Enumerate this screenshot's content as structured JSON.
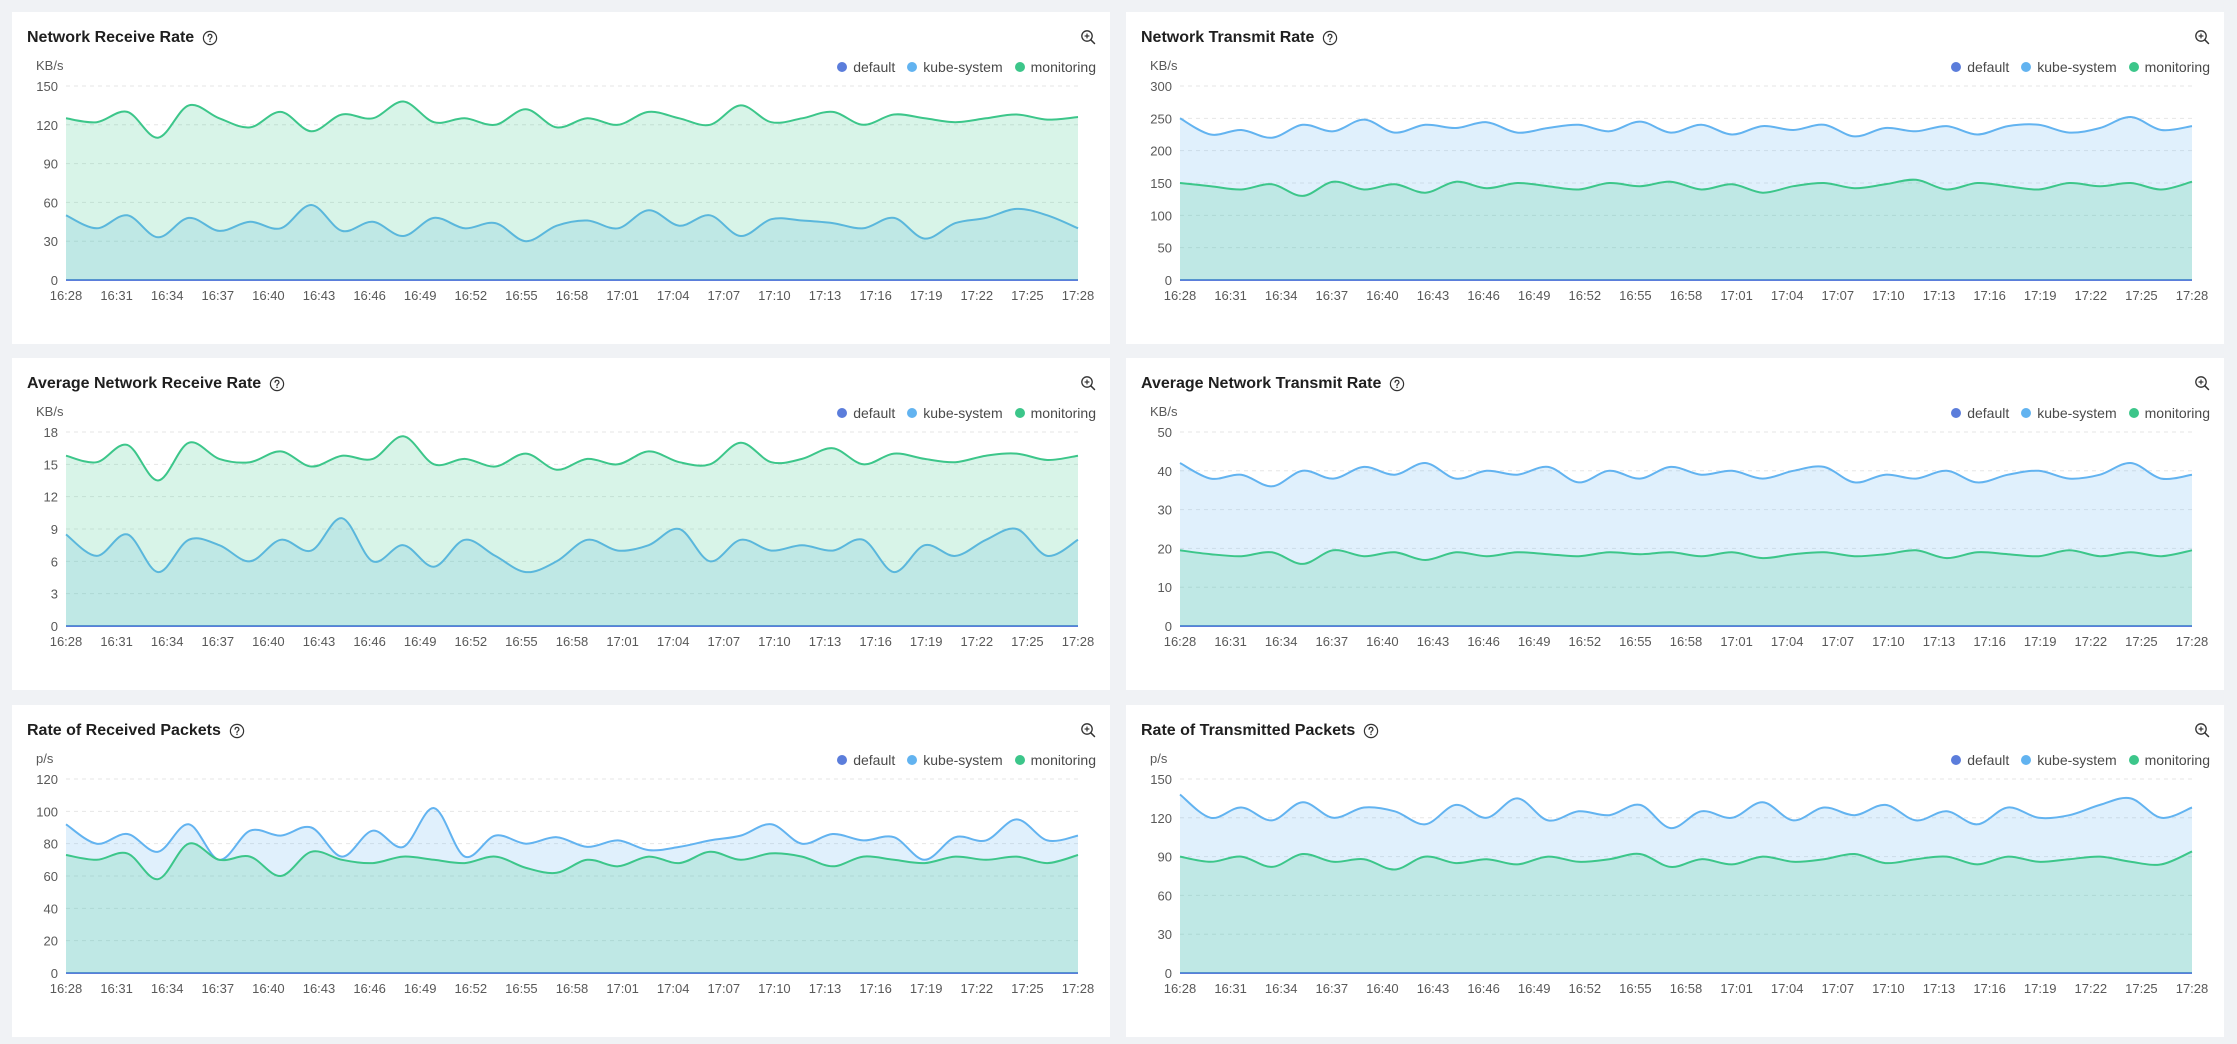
{
  "legend": [
    {
      "name": "default",
      "color": "#5b7ddb"
    },
    {
      "name": "kube-system",
      "color": "#62b3f0"
    },
    {
      "name": "monitoring",
      "color": "#3cc68a"
    }
  ],
  "icons": {
    "help": "question-circle-icon",
    "zoom": "zoom-in-icon"
  },
  "x_labels": [
    "16:28",
    "16:31",
    "16:34",
    "16:37",
    "16:40",
    "16:43",
    "16:46",
    "16:49",
    "16:52",
    "16:55",
    "16:58",
    "17:01",
    "17:04",
    "17:07",
    "17:10",
    "17:13",
    "17:16",
    "17:19",
    "17:22",
    "17:25",
    "17:28"
  ],
  "panels": [
    {
      "title": "Network Receive Rate",
      "chart_data": {
        "type": "area",
        "unit": "KB/s",
        "ylim": [
          0,
          150
        ],
        "yticks": [
          0,
          30,
          60,
          90,
          120,
          150
        ],
        "series": [
          {
            "name": "default",
            "values": [
              0,
              0,
              0,
              0,
              0,
              0,
              0,
              0,
              0,
              0,
              0,
              0,
              0,
              0,
              0,
              0,
              0,
              0,
              0,
              0,
              0
            ]
          },
          {
            "name": "kube-system",
            "values": [
              50,
              40,
              50,
              33,
              48,
              38,
              45,
              40,
              58,
              38,
              45,
              34,
              48,
              40,
              44,
              30,
              42,
              46,
              40,
              54,
              42,
              50,
              34,
              47,
              46,
              44,
              40,
              48,
              32,
              44,
              48,
              55,
              50,
              40
            ]
          },
          {
            "name": "monitoring",
            "values": [
              125,
              122,
              130,
              110,
              135,
              125,
              118,
              130,
              115,
              128,
              125,
              138,
              122,
              125,
              120,
              132,
              118,
              125,
              120,
              130,
              125,
              120,
              135,
              122,
              125,
              130,
              120,
              128,
              125,
              122,
              125,
              128,
              124,
              126
            ]
          }
        ]
      }
    },
    {
      "title": "Network Transmit Rate",
      "chart_data": {
        "type": "area",
        "unit": "KB/s",
        "ylim": [
          0,
          300
        ],
        "yticks": [
          0,
          50,
          100,
          150,
          200,
          250,
          300
        ],
        "series": [
          {
            "name": "default",
            "values": [
              0,
              0,
              0,
              0,
              0,
              0,
              0,
              0,
              0,
              0,
              0,
              0,
              0,
              0,
              0,
              0,
              0,
              0,
              0,
              0,
              0
            ]
          },
          {
            "name": "kube-system",
            "values": [
              250,
              225,
              232,
              220,
              240,
              230,
              248,
              228,
              240,
              235,
              244,
              228,
              235,
              240,
              230,
              245,
              228,
              240,
              225,
              238,
              232,
              240,
              222,
              235,
              230,
              238,
              225,
              238,
              240,
              228,
              235,
              252,
              232,
              238
            ]
          },
          {
            "name": "monitoring",
            "values": [
              150,
              145,
              140,
              148,
              130,
              152,
              140,
              148,
              135,
              152,
              142,
              150,
              145,
              140,
              150,
              145,
              152,
              140,
              148,
              135,
              145,
              150,
              142,
              148,
              155,
              140,
              150,
              145,
              140,
              150,
              145,
              150,
              140,
              152
            ]
          }
        ]
      }
    },
    {
      "title": "Average Network Receive Rate",
      "chart_data": {
        "type": "area",
        "unit": "KB/s",
        "ylim": [
          0,
          18
        ],
        "yticks": [
          0,
          3,
          6,
          9,
          12,
          15,
          18
        ],
        "series": [
          {
            "name": "default",
            "values": [
              0,
              0,
              0,
              0,
              0,
              0,
              0,
              0,
              0,
              0,
              0,
              0,
              0,
              0,
              0,
              0,
              0,
              0,
              0,
              0,
              0
            ]
          },
          {
            "name": "kube-system",
            "values": [
              8.5,
              6.5,
              8.5,
              5,
              8,
              7.5,
              6,
              8,
              7,
              10,
              6,
              7.5,
              5.5,
              8,
              6.5,
              5,
              6,
              8,
              7,
              7.5,
              9,
              6,
              8,
              7,
              7.5,
              7,
              8,
              5,
              7.5,
              6.5,
              8,
              9,
              6.5,
              8
            ]
          },
          {
            "name": "monitoring",
            "values": [
              15.8,
              15.2,
              16.8,
              13.5,
              17,
              15.5,
              15.2,
              16.2,
              14.8,
              15.8,
              15.5,
              17.6,
              15,
              15.5,
              14.8,
              16,
              14.5,
              15.5,
              15,
              16.2,
              15.2,
              15,
              17,
              15.2,
              15.5,
              16.5,
              15,
              16,
              15.5,
              15.2,
              15.8,
              16,
              15.4,
              15.8
            ]
          }
        ]
      }
    },
    {
      "title": "Average Network Transmit Rate",
      "chart_data": {
        "type": "area",
        "unit": "KB/s",
        "ylim": [
          0,
          50
        ],
        "yticks": [
          0,
          10,
          20,
          30,
          40,
          50
        ],
        "series": [
          {
            "name": "default",
            "values": [
              0,
              0,
              0,
              0,
              0,
              0,
              0,
              0,
              0,
              0,
              0,
              0,
              0,
              0,
              0,
              0,
              0,
              0,
              0,
              0,
              0
            ]
          },
          {
            "name": "kube-system",
            "values": [
              42,
              38,
              39,
              36,
              40,
              38,
              41,
              39,
              42,
              38,
              40,
              39,
              41,
              37,
              40,
              38,
              41,
              39,
              40,
              38,
              40,
              41,
              37,
              39,
              38,
              40,
              37,
              39,
              40,
              38,
              39,
              42,
              38,
              39
            ]
          },
          {
            "name": "monitoring",
            "values": [
              19.5,
              18.5,
              18,
              19,
              16,
              19.5,
              18,
              19,
              17,
              19,
              18,
              19,
              18.5,
              18,
              19,
              18.5,
              19,
              18,
              19,
              17.5,
              18.5,
              19,
              18,
              18.5,
              19.5,
              17.5,
              19,
              18.5,
              18,
              19.5,
              18,
              19,
              18,
              19.5
            ]
          }
        ]
      }
    },
    {
      "title": "Rate of Received Packets",
      "chart_data": {
        "type": "area",
        "unit": "p/s",
        "ylim": [
          0,
          120
        ],
        "yticks": [
          0,
          20,
          40,
          60,
          80,
          100,
          120
        ],
        "series": [
          {
            "name": "default",
            "values": [
              0,
              0,
              0,
              0,
              0,
              0,
              0,
              0,
              0,
              0,
              0,
              0,
              0,
              0,
              0,
              0,
              0,
              0,
              0,
              0,
              0
            ]
          },
          {
            "name": "kube-system",
            "values": [
              92,
              80,
              86,
              75,
              92,
              70,
              88,
              85,
              90,
              72,
              88,
              78,
              102,
              72,
              85,
              80,
              84,
              78,
              82,
              76,
              78,
              82,
              85,
              92,
              80,
              86,
              82,
              84,
              70,
              84,
              82,
              95,
              82,
              85
            ]
          },
          {
            "name": "monitoring",
            "values": [
              73,
              70,
              74,
              58,
              80,
              70,
              72,
              60,
              75,
              70,
              68,
              72,
              70,
              68,
              72,
              65,
              62,
              70,
              66,
              72,
              68,
              75,
              70,
              74,
              72,
              66,
              72,
              70,
              68,
              72,
              70,
              72,
              68,
              73
            ]
          }
        ]
      }
    },
    {
      "title": "Rate of Transmitted Packets",
      "chart_data": {
        "type": "area",
        "unit": "p/s",
        "ylim": [
          0,
          150
        ],
        "yticks": [
          0,
          30,
          60,
          90,
          120,
          150
        ],
        "series": [
          {
            "name": "default",
            "values": [
              0,
              0,
              0,
              0,
              0,
              0,
              0,
              0,
              0,
              0,
              0,
              0,
              0,
              0,
              0,
              0,
              0,
              0,
              0,
              0,
              0
            ]
          },
          {
            "name": "kube-system",
            "values": [
              138,
              120,
              128,
              118,
              132,
              120,
              128,
              125,
              115,
              130,
              120,
              135,
              118,
              125,
              122,
              130,
              112,
              125,
              120,
              132,
              118,
              128,
              122,
              130,
              118,
              125,
              115,
              128,
              120,
              122,
              130,
              135,
              120,
              128
            ]
          },
          {
            "name": "monitoring",
            "values": [
              90,
              86,
              90,
              82,
              92,
              86,
              88,
              80,
              90,
              85,
              88,
              84,
              90,
              86,
              88,
              92,
              82,
              88,
              84,
              90,
              86,
              88,
              92,
              85,
              88,
              90,
              84,
              90,
              86,
              88,
              90,
              86,
              84,
              94
            ]
          }
        ]
      }
    }
  ]
}
